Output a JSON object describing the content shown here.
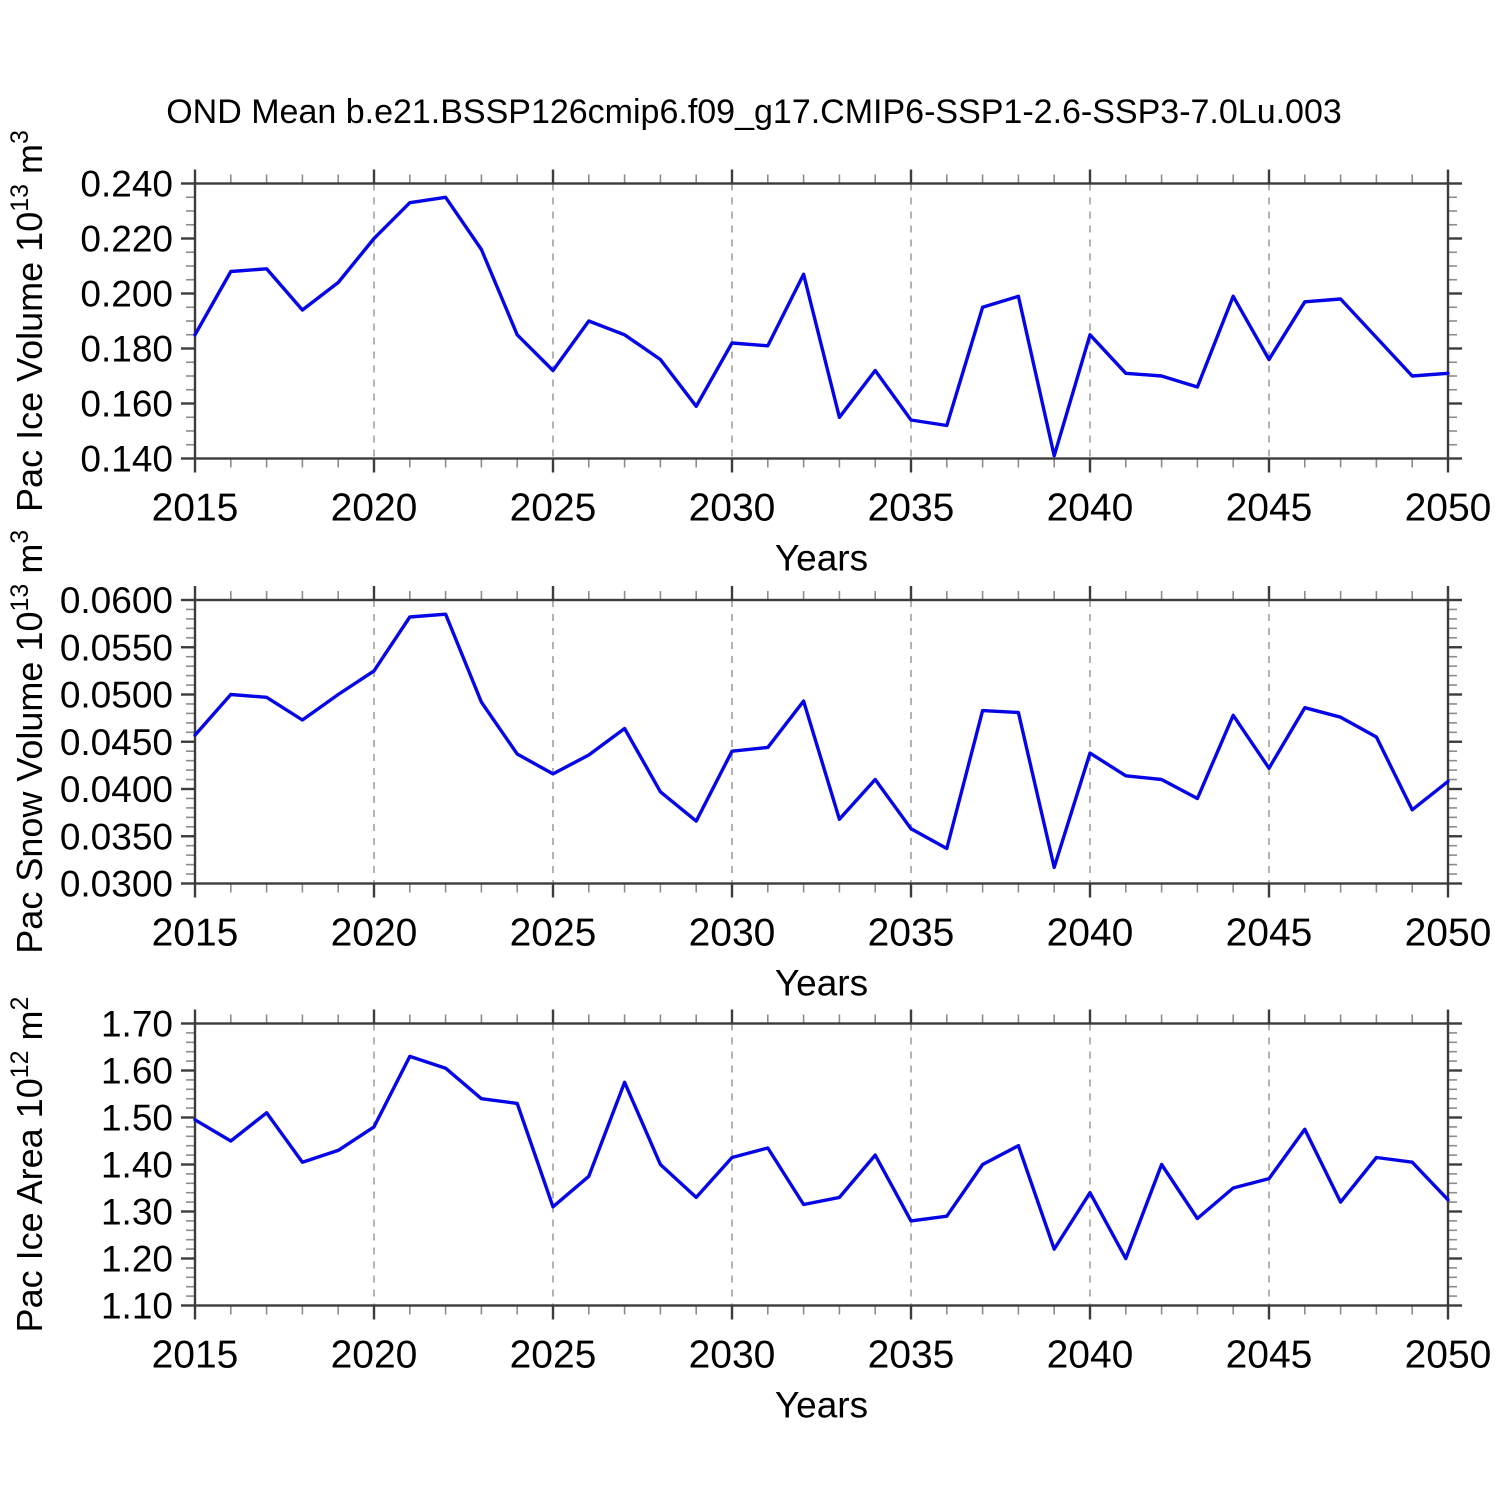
{
  "title": "OND Mean b.e21.BSSP126cmip6.f09_g17.CMIP6-SSP1-2.6-SSP3-7.0Lu.003",
  "chart_data": {
    "type": "line",
    "title": "OND Mean b.e21.BSSP126cmip6.f09_g17.CMIP6-SSP1-2.6-SSP3-7.0Lu.003",
    "x_label": "Years",
    "x_range": [
      2015,
      2050
    ],
    "line_color": "#0505e8",
    "gridlines_dashed_at": [
      2020,
      2025,
      2030,
      2035,
      2040,
      2045
    ],
    "years": [
      2015,
      2016,
      2017,
      2018,
      2019,
      2020,
      2021,
      2022,
      2023,
      2024,
      2025,
      2026,
      2027,
      2028,
      2029,
      2030,
      2031,
      2032,
      2033,
      2034,
      2035,
      2036,
      2037,
      2038,
      2039,
      2040,
      2041,
      2042,
      2043,
      2044,
      2045,
      2046,
      2047,
      2048,
      2049,
      2050
    ],
    "x_major_ticks": [
      2015,
      2020,
      2025,
      2030,
      2035,
      2040,
      2045,
      2050
    ],
    "x_tick_labels": [
      "2015",
      "2020",
      "2025",
      "2030",
      "2035",
      "2040",
      "2045",
      "2050"
    ],
    "panels": [
      {
        "name": "pac-ice-volume",
        "ylabel_parts": [
          {
            "t": "Pac Ice Volume 10"
          },
          {
            "t": "13",
            "sup": true
          },
          {
            "t": " m"
          },
          {
            "t": "3",
            "sup": true
          }
        ],
        "ylim": [
          0.14,
          0.24
        ],
        "y_major_step": 0.02,
        "y_minor_step": 0.005,
        "y_tick_labels": [
          "0.140",
          "0.160",
          "0.180",
          "0.200",
          "0.220",
          "0.240"
        ],
        "values": [
          0.185,
          0.208,
          0.209,
          0.194,
          0.204,
          0.22,
          0.233,
          0.235,
          0.216,
          0.185,
          0.172,
          0.19,
          0.185,
          0.176,
          0.159,
          0.182,
          0.181,
          0.207,
          0.155,
          0.172,
          0.154,
          0.152,
          0.195,
          0.199,
          0.141,
          0.185,
          0.171,
          0.17,
          0.166,
          0.199,
          0.176,
          0.197,
          0.198,
          0.184,
          0.17,
          0.171
        ]
      },
      {
        "name": "pac-snow-volume",
        "ylabel_parts": [
          {
            "t": "Pac Snow Volume 10"
          },
          {
            "t": "13",
            "sup": true
          },
          {
            "t": " m"
          },
          {
            "t": "3",
            "sup": true
          }
        ],
        "ylim": [
          0.03,
          0.06
        ],
        "y_major_step": 0.005,
        "y_minor_step": 0.001,
        "y_tick_labels": [
          "0.0300",
          "0.0350",
          "0.0400",
          "0.0450",
          "0.0500",
          "0.0550",
          "0.0600"
        ],
        "values": [
          0.0457,
          0.05,
          0.0497,
          0.0473,
          0.05,
          0.0525,
          0.0582,
          0.0585,
          0.0492,
          0.0437,
          0.0416,
          0.0436,
          0.0464,
          0.0397,
          0.0366,
          0.044,
          0.0444,
          0.0493,
          0.0368,
          0.041,
          0.0358,
          0.0337,
          0.0483,
          0.0481,
          0.0317,
          0.0438,
          0.0414,
          0.041,
          0.039,
          0.0478,
          0.0422,
          0.0486,
          0.0476,
          0.0455,
          0.0378,
          0.0408
        ]
      },
      {
        "name": "pac-ice-area",
        "ylabel_parts": [
          {
            "t": "Pac Ice Area 10"
          },
          {
            "t": "12",
            "sup": true
          },
          {
            "t": " m"
          },
          {
            "t": "2",
            "sup": true
          }
        ],
        "ylim": [
          1.1,
          1.7
        ],
        "y_major_step": 0.1,
        "y_minor_step": 0.02,
        "y_tick_labels": [
          "1.10",
          "1.20",
          "1.30",
          "1.40",
          "1.50",
          "1.60",
          "1.70"
        ],
        "values": [
          1.495,
          1.45,
          1.51,
          1.405,
          1.43,
          1.48,
          1.63,
          1.605,
          1.54,
          1.53,
          1.31,
          1.375,
          1.575,
          1.4,
          1.33,
          1.415,
          1.435,
          1.315,
          1.33,
          1.42,
          1.28,
          1.29,
          1.4,
          1.44,
          1.22,
          1.34,
          1.2,
          1.4,
          1.285,
          1.35,
          1.37,
          1.475,
          1.32,
          1.415,
          1.405,
          1.325
        ]
      }
    ]
  }
}
